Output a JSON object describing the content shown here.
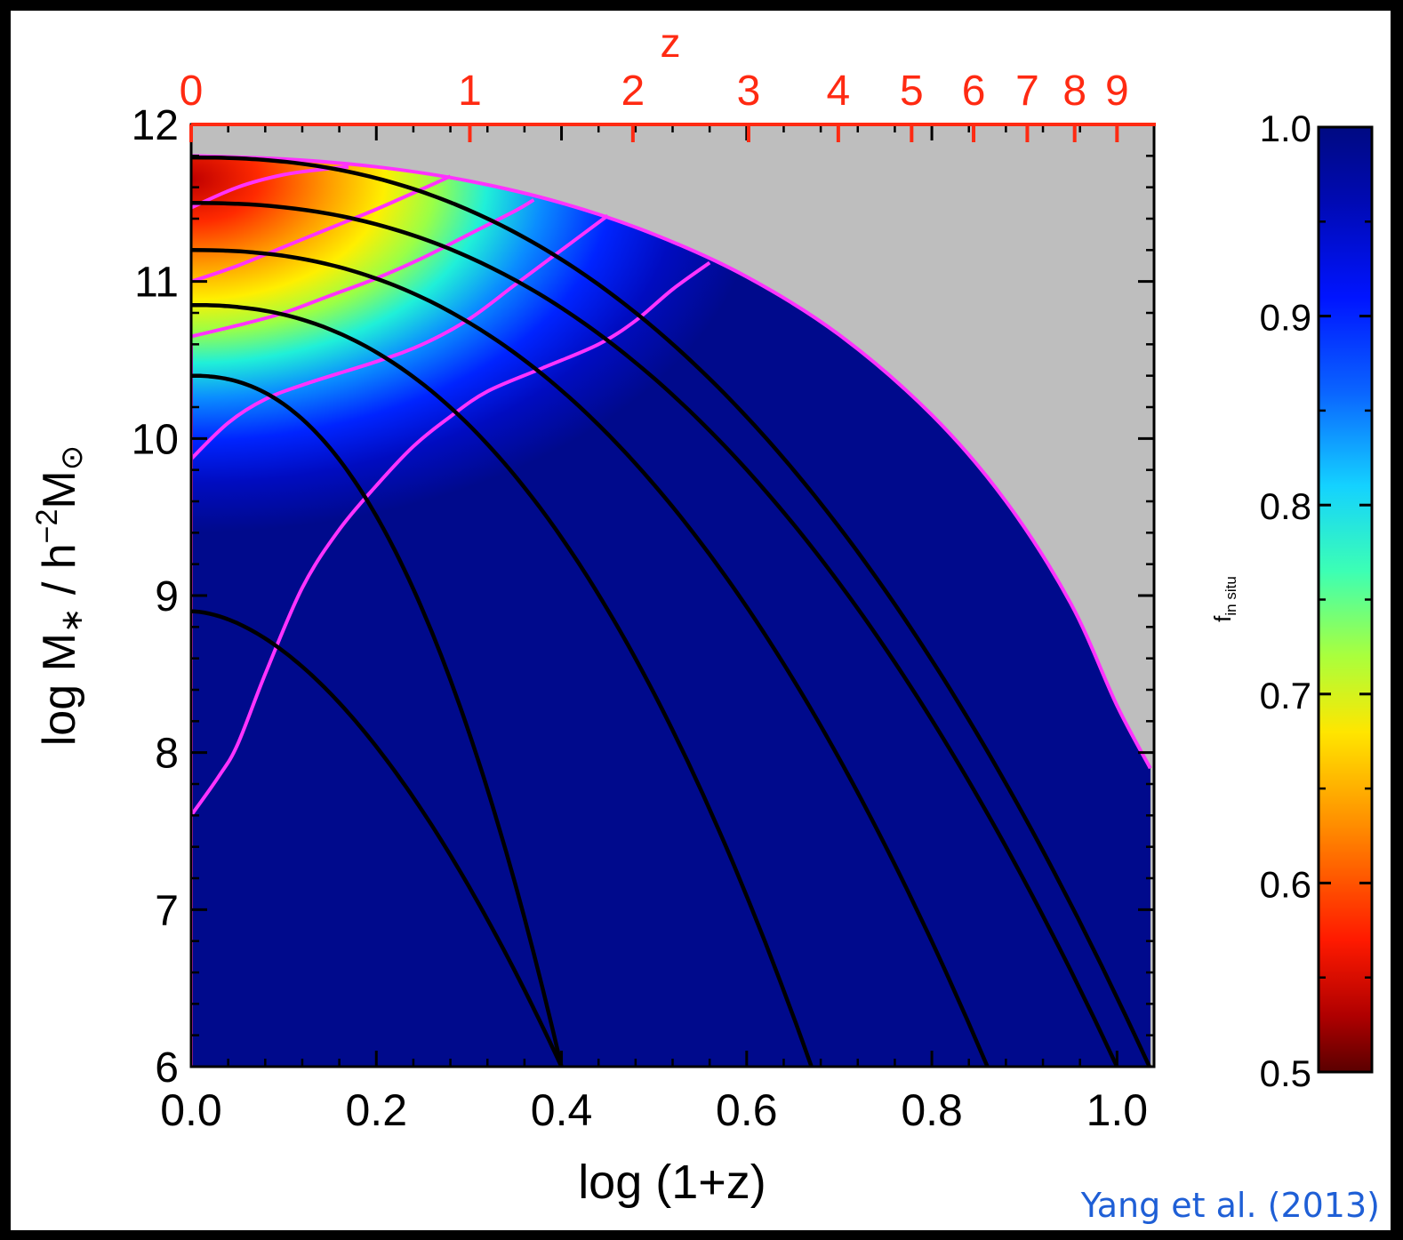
{
  "chart_data": {
    "type": "heatmap",
    "title": "",
    "xlabel": "log (1+z)",
    "ylabel": "log M∗ / h⁻²M⊙",
    "ylabel_parts": {
      "main": "log M",
      "sub": "∗",
      "mid": " / h",
      "sup": "−2",
      "end": "M",
      "sub2": "⊙"
    },
    "top_xlabel": "z",
    "colorbar_label": "f in situ",
    "colorbar_label_parts": {
      "main": "f",
      "sub": "in situ"
    },
    "xlim": [
      0.0,
      1.04
    ],
    "ylim": [
      6,
      12
    ],
    "xticks": [
      "0.0",
      "0.2",
      "0.4",
      "0.6",
      "0.8",
      "1.0"
    ],
    "yticks": [
      "6",
      "7",
      "8",
      "9",
      "10",
      "11",
      "12"
    ],
    "top_ticks": [
      {
        "label": "0",
        "z": 0
      },
      {
        "label": "1",
        "z": 1
      },
      {
        "label": "2",
        "z": 2
      },
      {
        "label": "3",
        "z": 3
      },
      {
        "label": "4",
        "z": 4
      },
      {
        "label": "5",
        "z": 5
      },
      {
        "label": "6",
        "z": 6
      },
      {
        "label": "7",
        "z": 7
      },
      {
        "label": "8",
        "z": 8
      },
      {
        "label": "9",
        "z": 9
      }
    ],
    "colorbar": {
      "ticks": [
        "0.5",
        "0.6",
        "0.7",
        "0.8",
        "0.9",
        "1.0"
      ],
      "range": [
        0.5,
        1.0
      ],
      "colormap": "rainbow (dark red = 0.5, dark blue = 1.0)"
    },
    "background_color": "#bebebe",
    "envelope": [
      [
        0.0,
        11.8
      ],
      [
        0.1,
        11.78
      ],
      [
        0.2,
        11.73
      ],
      [
        0.3,
        11.64
      ],
      [
        0.4,
        11.5
      ],
      [
        0.5,
        11.3
      ],
      [
        0.6,
        11.03
      ],
      [
        0.7,
        10.66
      ],
      [
        0.8,
        10.15
      ],
      [
        0.88,
        9.6
      ],
      [
        0.95,
        8.95
      ],
      [
        1.0,
        8.3
      ],
      [
        1.036,
        7.9
      ]
    ],
    "black_tracks": [
      {
        "x0": 0.0,
        "y0": 11.79,
        "x_end": 1.035,
        "y_end": 6.0
      },
      {
        "x0": 0.0,
        "y0": 11.5,
        "x_end": 1.0,
        "y_end": 6.0
      },
      {
        "x0": 0.0,
        "y0": 11.2,
        "x_end": 0.86,
        "y_end": 6.0
      },
      {
        "x0": 0.0,
        "y0": 10.85,
        "x_end": 0.67,
        "y_end": 6.0
      },
      {
        "x0": 0.0,
        "y0": 10.4,
        "x_end": 0.4,
        "y_end": 6.0
      },
      {
        "x0": 0.0,
        "y0": 8.9,
        "x_end": 0.4,
        "y_end": 6.0
      }
    ],
    "magenta_contours": [
      {
        "f_in_situ": 0.6,
        "points": [
          [
            0.0,
            11.47
          ],
          [
            0.05,
            11.6
          ],
          [
            0.1,
            11.68
          ],
          [
            0.15,
            11.72
          ],
          [
            0.17,
            11.73
          ]
        ]
      },
      {
        "f_in_situ": 0.7,
        "points": [
          [
            0.0,
            11.0
          ],
          [
            0.05,
            11.1
          ],
          [
            0.1,
            11.22
          ],
          [
            0.15,
            11.34
          ],
          [
            0.2,
            11.46
          ],
          [
            0.25,
            11.59
          ],
          [
            0.28,
            11.67
          ]
        ]
      },
      {
        "f_in_situ": 0.8,
        "points": [
          [
            0.0,
            10.65
          ],
          [
            0.05,
            10.72
          ],
          [
            0.1,
            10.8
          ],
          [
            0.15,
            10.91
          ],
          [
            0.2,
            11.02
          ],
          [
            0.25,
            11.15
          ],
          [
            0.3,
            11.3
          ],
          [
            0.35,
            11.45
          ],
          [
            0.37,
            11.52
          ]
        ]
      },
      {
        "f_in_situ": 0.9,
        "points": [
          [
            0.0,
            9.87
          ],
          [
            0.04,
            10.1
          ],
          [
            0.08,
            10.25
          ],
          [
            0.13,
            10.36
          ],
          [
            0.2,
            10.49
          ],
          [
            0.25,
            10.6
          ],
          [
            0.3,
            10.76
          ],
          [
            0.35,
            10.98
          ],
          [
            0.4,
            11.2
          ],
          [
            0.45,
            11.42
          ]
        ]
      },
      {
        "f_in_situ": 0.95,
        "points": [
          [
            0.0,
            7.6
          ],
          [
            0.03,
            7.85
          ],
          [
            0.05,
            8.05
          ],
          [
            0.08,
            8.5
          ],
          [
            0.12,
            9.05
          ],
          [
            0.16,
            9.42
          ],
          [
            0.2,
            9.7
          ],
          [
            0.24,
            9.95
          ],
          [
            0.28,
            10.14
          ],
          [
            0.32,
            10.3
          ],
          [
            0.38,
            10.45
          ],
          [
            0.44,
            10.6
          ],
          [
            0.48,
            10.75
          ],
          [
            0.52,
            10.95
          ],
          [
            0.56,
            11.12
          ]
        ]
      },
      {
        "f_in_situ": 1.0,
        "points": [
          [
            0.0,
            6.0
          ],
          [
            0.0,
            10.6
          ]
        ]
      }
    ],
    "grid": false,
    "legend": "none"
  },
  "credit": "Yang et al. (2013)",
  "colors": {
    "top_axis": "#ff2a12",
    "contour": "#ff33ff",
    "track": "#000000",
    "credit": "#1f5fd6",
    "frame": "#000000"
  }
}
